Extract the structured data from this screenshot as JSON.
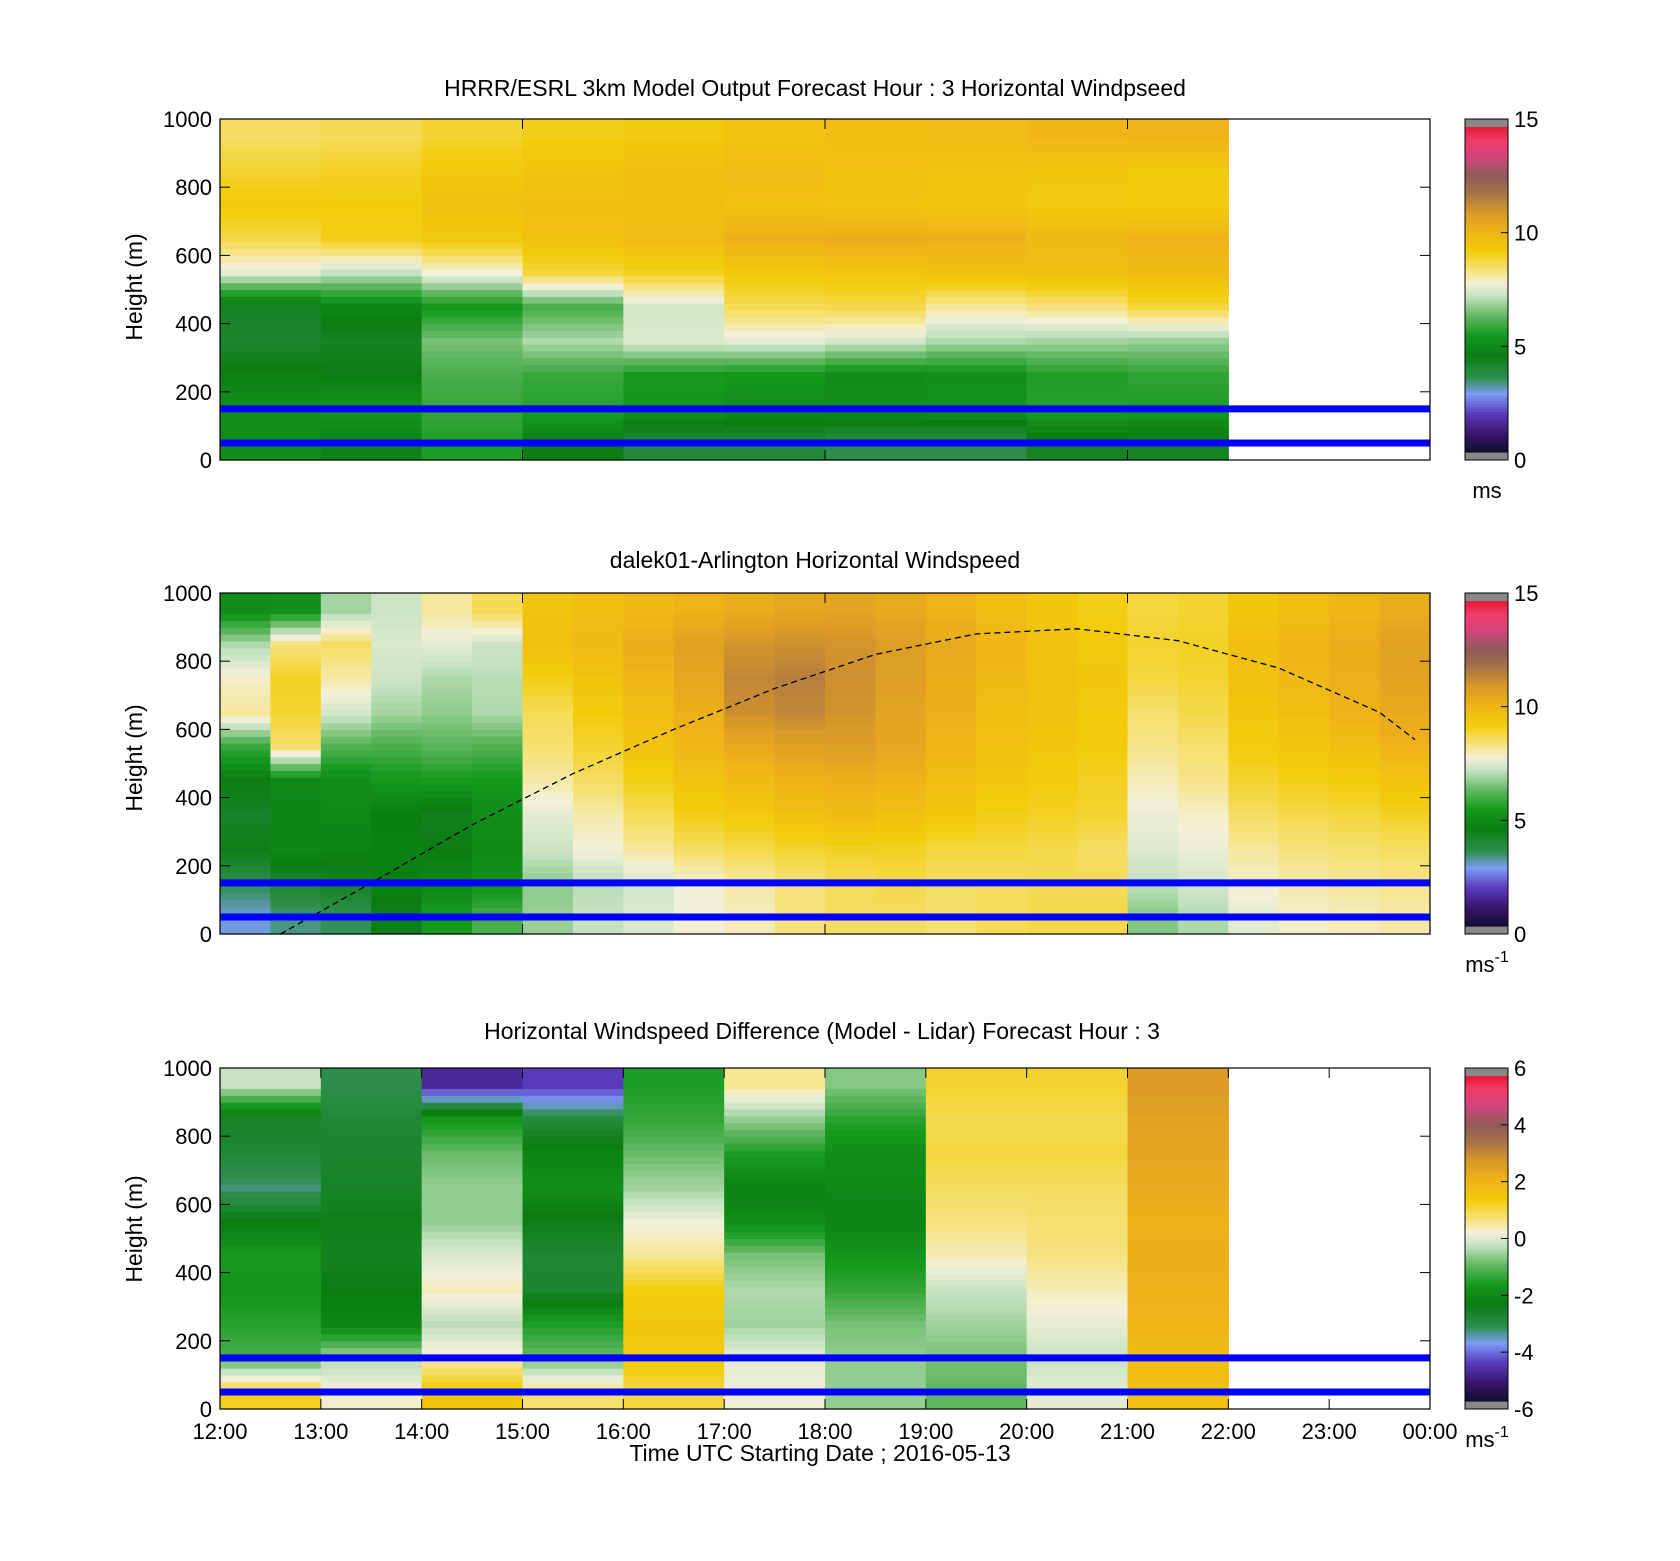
{
  "chart_data": [
    {
      "type": "heatmap",
      "title": "HRRR/ESRL 3km Model Output   Forecast Hour : 3 Horizontal Windpseed",
      "ylabel": "Height (m)",
      "xlim": [
        12,
        24
      ],
      "ylim": [
        0,
        1000
      ],
      "yticks": [
        "0",
        "200",
        "400",
        "600",
        "800",
        "1000"
      ],
      "xtick_positions": [
        12,
        15,
        18,
        21
      ],
      "xticklabels_shown": false,
      "colorbar": {
        "min": 0,
        "max": 15,
        "ticks": [
          "0",
          "5",
          "10",
          "15"
        ],
        "unit": "ms",
        "unit_sup": ""
      },
      "reference_lines_m": [
        150,
        50
      ],
      "x_hours": [
        12,
        13,
        14,
        15,
        16,
        17,
        18,
        19,
        20,
        21
      ],
      "column_width_hours": 1,
      "row_height_m": 100,
      "row_starts_m": [
        0,
        100,
        200,
        300,
        400,
        500,
        600,
        700,
        800,
        900
      ],
      "values": [
        [
          5.0,
          4.7,
          5.5,
          4.5,
          3.8,
          3.8,
          3.5,
          3.5,
          4.2,
          4.2
        ],
        [
          5.1,
          5.3,
          5.8,
          5.6,
          5.2,
          5.0,
          5.1,
          5.2,
          5.6,
          5.5
        ],
        [
          4.6,
          4.5,
          6.0,
          5.8,
          5.4,
          5.3,
          5.0,
          5.1,
          5.5,
          5.7
        ],
        [
          4.0,
          4.2,
          6.5,
          7.0,
          7.5,
          7.6,
          7.4,
          7.0,
          6.9,
          6.8
        ],
        [
          4.2,
          4.8,
          5.3,
          6.0,
          7.4,
          8.7,
          8.8,
          8.2,
          8.4,
          8.9
        ],
        [
          7.6,
          7.2,
          7.8,
          8.9,
          9.1,
          9.4,
          9.5,
          9.7,
          9.8,
          9.9
        ],
        [
          8.8,
          9.2,
          9.4,
          9.7,
          9.9,
          10.3,
          10.4,
          10.3,
          10.0,
          10.2
        ],
        [
          9.4,
          9.3,
          9.7,
          9.8,
          9.8,
          9.7,
          9.6,
          9.5,
          9.4,
          9.3
        ],
        [
          9.0,
          9.1,
          9.4,
          9.6,
          9.8,
          9.9,
          9.7,
          9.6,
          9.5,
          9.4
        ],
        [
          8.6,
          8.7,
          9.0,
          9.2,
          9.4,
          9.6,
          9.8,
          9.9,
          10.1,
          10.2
        ]
      ]
    },
    {
      "type": "heatmap",
      "title": "dalek01-Arlington  Horizontal Windspeed",
      "ylabel": "Height (m)",
      "xlim": [
        12,
        24
      ],
      "ylim": [
        0,
        1000
      ],
      "yticks": [
        "0",
        "200",
        "400",
        "600",
        "800",
        "1000"
      ],
      "xtick_positions": [
        12,
        15,
        18,
        21
      ],
      "xticklabels_shown": false,
      "colorbar": {
        "min": 0,
        "max": 15,
        "ticks": [
          "0",
          "5",
          "10",
          "15"
        ],
        "unit": "ms",
        "unit_sup": "-1"
      },
      "reference_lines_m": [
        150,
        50
      ],
      "boundary_layer_curve": {
        "x_hours": [
          12.6,
          13.5,
          14.5,
          15.5,
          16.5,
          17.5,
          18.5,
          19.5,
          20.5,
          21.5,
          22.5,
          23.5,
          23.85
        ],
        "height_m": [
          0,
          150,
          320,
          470,
          600,
          720,
          820,
          880,
          895,
          860,
          780,
          650,
          570
        ]
      },
      "x_hours": [
        12.0,
        12.5,
        13.0,
        13.5,
        14.0,
        14.5,
        15.0,
        15.5,
        16.0,
        16.5,
        17.0,
        17.5,
        18.0,
        18.5,
        19.0,
        19.5,
        20.0,
        20.5,
        21.0,
        21.5,
        22.0,
        22.5,
        23.0,
        23.5
      ],
      "column_width_hours": 0.5,
      "row_height_m": 100,
      "row_starts_m": [
        0,
        100,
        200,
        300,
        400,
        500,
        600,
        700,
        800,
        900
      ],
      "values": [
        [
          2.8,
          3.2,
          3.4,
          4.4,
          5.4,
          6.0,
          6.8,
          7.2,
          7.5,
          7.8,
          8.0,
          8.4,
          8.6,
          8.6,
          8.5,
          8.7,
          8.8,
          8.8,
          6.6,
          7.0,
          7.6,
          7.9,
          8.0,
          8.1
        ],
        [
          3.5,
          4.0,
          4.2,
          4.6,
          4.8,
          5.1,
          6.7,
          7.1,
          7.4,
          7.8,
          8.1,
          8.4,
          8.7,
          8.8,
          8.6,
          8.6,
          8.7,
          8.7,
          7.2,
          7.4,
          7.9,
          8.1,
          8.2,
          8.3
        ],
        [
          4.4,
          4.8,
          4.7,
          4.6,
          4.5,
          4.9,
          7.3,
          7.8,
          8.2,
          8.6,
          8.8,
          9.0,
          9.1,
          9.1,
          8.9,
          8.9,
          8.8,
          8.6,
          7.5,
          7.7,
          8.2,
          8.4,
          8.5,
          8.6
        ],
        [
          4.1,
          4.8,
          4.9,
          4.5,
          4.3,
          5.0,
          7.6,
          8.1,
          8.7,
          9.2,
          9.4,
          9.7,
          9.9,
          9.7,
          9.5,
          9.2,
          9.1,
          9.0,
          7.7,
          7.9,
          8.6,
          8.8,
          8.9,
          9.1
        ],
        [
          4.5,
          4.9,
          5.0,
          5.3,
          5.4,
          5.3,
          8.1,
          8.6,
          9.2,
          9.6,
          9.9,
          10.2,
          10.3,
          10.2,
          9.8,
          9.5,
          9.3,
          9.1,
          8.0,
          8.3,
          9.0,
          9.2,
          9.3,
          9.6
        ],
        [
          5.8,
          8.5,
          6.1,
          6.0,
          6.2,
          6.1,
          8.5,
          9.0,
          9.6,
          10.1,
          10.5,
          10.8,
          10.9,
          10.6,
          10.1,
          9.7,
          9.5,
          9.3,
          8.3,
          8.5,
          9.3,
          9.5,
          9.8,
          10.2
        ],
        [
          8.2,
          9.0,
          7.4,
          6.9,
          6.7,
          7.0,
          8.7,
          9.3,
          9.8,
          10.3,
          11.3,
          11.5,
          11.2,
          10.7,
          10.3,
          9.8,
          9.7,
          9.4,
          8.5,
          8.8,
          9.5,
          9.8,
          10.2,
          10.5
        ],
        [
          7.9,
          9.1,
          8.1,
          7.3,
          7.0,
          7.1,
          9.2,
          9.6,
          10.1,
          10.6,
          11.5,
          11.7,
          11.3,
          10.9,
          10.4,
          10.0,
          9.7,
          9.5,
          8.9,
          9.0,
          9.7,
          10.0,
          10.3,
          10.7
        ],
        [
          7.0,
          8.4,
          8.6,
          7.5,
          7.6,
          7.3,
          9.7,
          10.0,
          10.4,
          10.8,
          11.2,
          11.3,
          11.2,
          10.9,
          10.5,
          10.1,
          9.7,
          9.4,
          9.0,
          9.1,
          9.8,
          10.1,
          10.4,
          10.8
        ],
        [
          5.0,
          5.1,
          6.9,
          7.3,
          8.2,
          8.7,
          9.6,
          9.8,
          10.0,
          10.2,
          10.4,
          10.6,
          10.7,
          10.5,
          10.2,
          9.8,
          9.5,
          9.2,
          8.9,
          9.0,
          9.5,
          9.8,
          10.1,
          10.4
        ]
      ]
    },
    {
      "type": "heatmap",
      "title": "Horizontal Windspeed Difference (Model - Lidar) Forecast Hour : 3",
      "xlabel": "Time UTC  Starting Date ; 2016-05-13",
      "ylabel": "Height (m)",
      "xlim": [
        12,
        24
      ],
      "ylim": [
        0,
        1000
      ],
      "xticks": [
        "12:00",
        "13:00",
        "14:00",
        "15:00",
        "16:00",
        "17:00",
        "18:00",
        "19:00",
        "20:00",
        "21:00",
        "22:00",
        "23:00",
        "00:00"
      ],
      "yticks": [
        "0",
        "200",
        "400",
        "600",
        "800",
        "1000"
      ],
      "colorbar": {
        "min": -6,
        "max": 6,
        "ticks": [
          "-6",
          "-4",
          "-2",
          "0",
          "2",
          "4",
          "6"
        ],
        "unit": "ms",
        "unit_sup": "-1"
      },
      "reference_lines_m": [
        150,
        50
      ],
      "x_hours": [
        12,
        13,
        14,
        15,
        16,
        17,
        18,
        19,
        20,
        21
      ],
      "column_width_hours": 1,
      "row_height_m": 100,
      "row_starts_m": [
        0,
        100,
        200,
        300,
        400,
        500,
        600,
        700,
        800,
        900
      ],
      "values": [
        [
          1.3,
          0.3,
          1.6,
          0.8,
          1.1,
          0.2,
          -0.6,
          -1.0,
          0.1,
          1.8
        ],
        [
          -1.2,
          -0.4,
          0.4,
          -0.9,
          1.5,
          0.1,
          -0.6,
          -0.8,
          -0.2,
          1.9
        ],
        [
          -1.5,
          -2.2,
          -0.3,
          -1.6,
          1.6,
          -0.5,
          -0.8,
          -0.5,
          0.1,
          2.1
        ],
        [
          -1.8,
          -2.4,
          0.4,
          -2.8,
          1.4,
          -0.4,
          -1.4,
          -0.2,
          0.4,
          2.2
        ],
        [
          -1.7,
          -2.6,
          0.0,
          -2.9,
          0.6,
          -0.8,
          -1.8,
          0.4,
          0.7,
          2.3
        ],
        [
          -2.4,
          -2.5,
          -0.6,
          -2.5,
          0.2,
          -2.0,
          -2.2,
          0.7,
          0.8,
          2.2
        ],
        [
          -3.4,
          -2.7,
          -0.6,
          -2.0,
          -0.5,
          -2.3,
          -2.1,
          0.9,
          0.9,
          2.4
        ],
        [
          -2.9,
          -2.8,
          -0.9,
          -2.2,
          -0.9,
          -1.6,
          -2.0,
          1.1,
          1.1,
          2.5
        ],
        [
          -2.7,
          -2.9,
          -1.8,
          -3.0,
          -1.4,
          -0.6,
          -1.5,
          1.0,
          1.0,
          2.6
        ],
        [
          -0.2,
          -3.2,
          -4.9,
          -4.6,
          -1.6,
          0.6,
          -0.7,
          1.2,
          1.2,
          2.8
        ]
      ]
    }
  ]
}
